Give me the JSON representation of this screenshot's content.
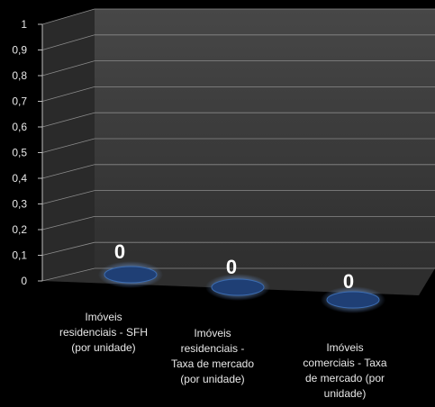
{
  "chart_data": {
    "type": "bar",
    "style": "3d-cylinder",
    "categories": [
      [
        "Imóveis",
        "residenciais - SFH",
        "(por unidade)"
      ],
      [
        "Imóveis",
        "residenciais -",
        "Taxa de mercado",
        "(por unidade)"
      ],
      [
        "Imóveis",
        "comerciais - Taxa",
        "de mercado (por",
        "unidade)"
      ]
    ],
    "values": [
      0,
      0,
      0
    ],
    "data_labels": [
      "0",
      "0",
      "0"
    ],
    "ylim": [
      0,
      1
    ],
    "y_ticks": [
      "0",
      "0,1",
      "0,2",
      "0,3",
      "0,4",
      "0,5",
      "0,6",
      "0,7",
      "0,8",
      "0,9",
      "1"
    ],
    "grid": true,
    "legend": "none",
    "colors": {
      "background": "#000000",
      "back_wall": "#3b3b3b",
      "side_wall": "#2a2a2a",
      "floor": "#2e2e2e",
      "gridline": "#8a8a8a",
      "bar": "#1f3f75",
      "bar_edge": "#3c6cb0",
      "text": "#e8e8e8",
      "data_label": "#ffffff"
    }
  }
}
